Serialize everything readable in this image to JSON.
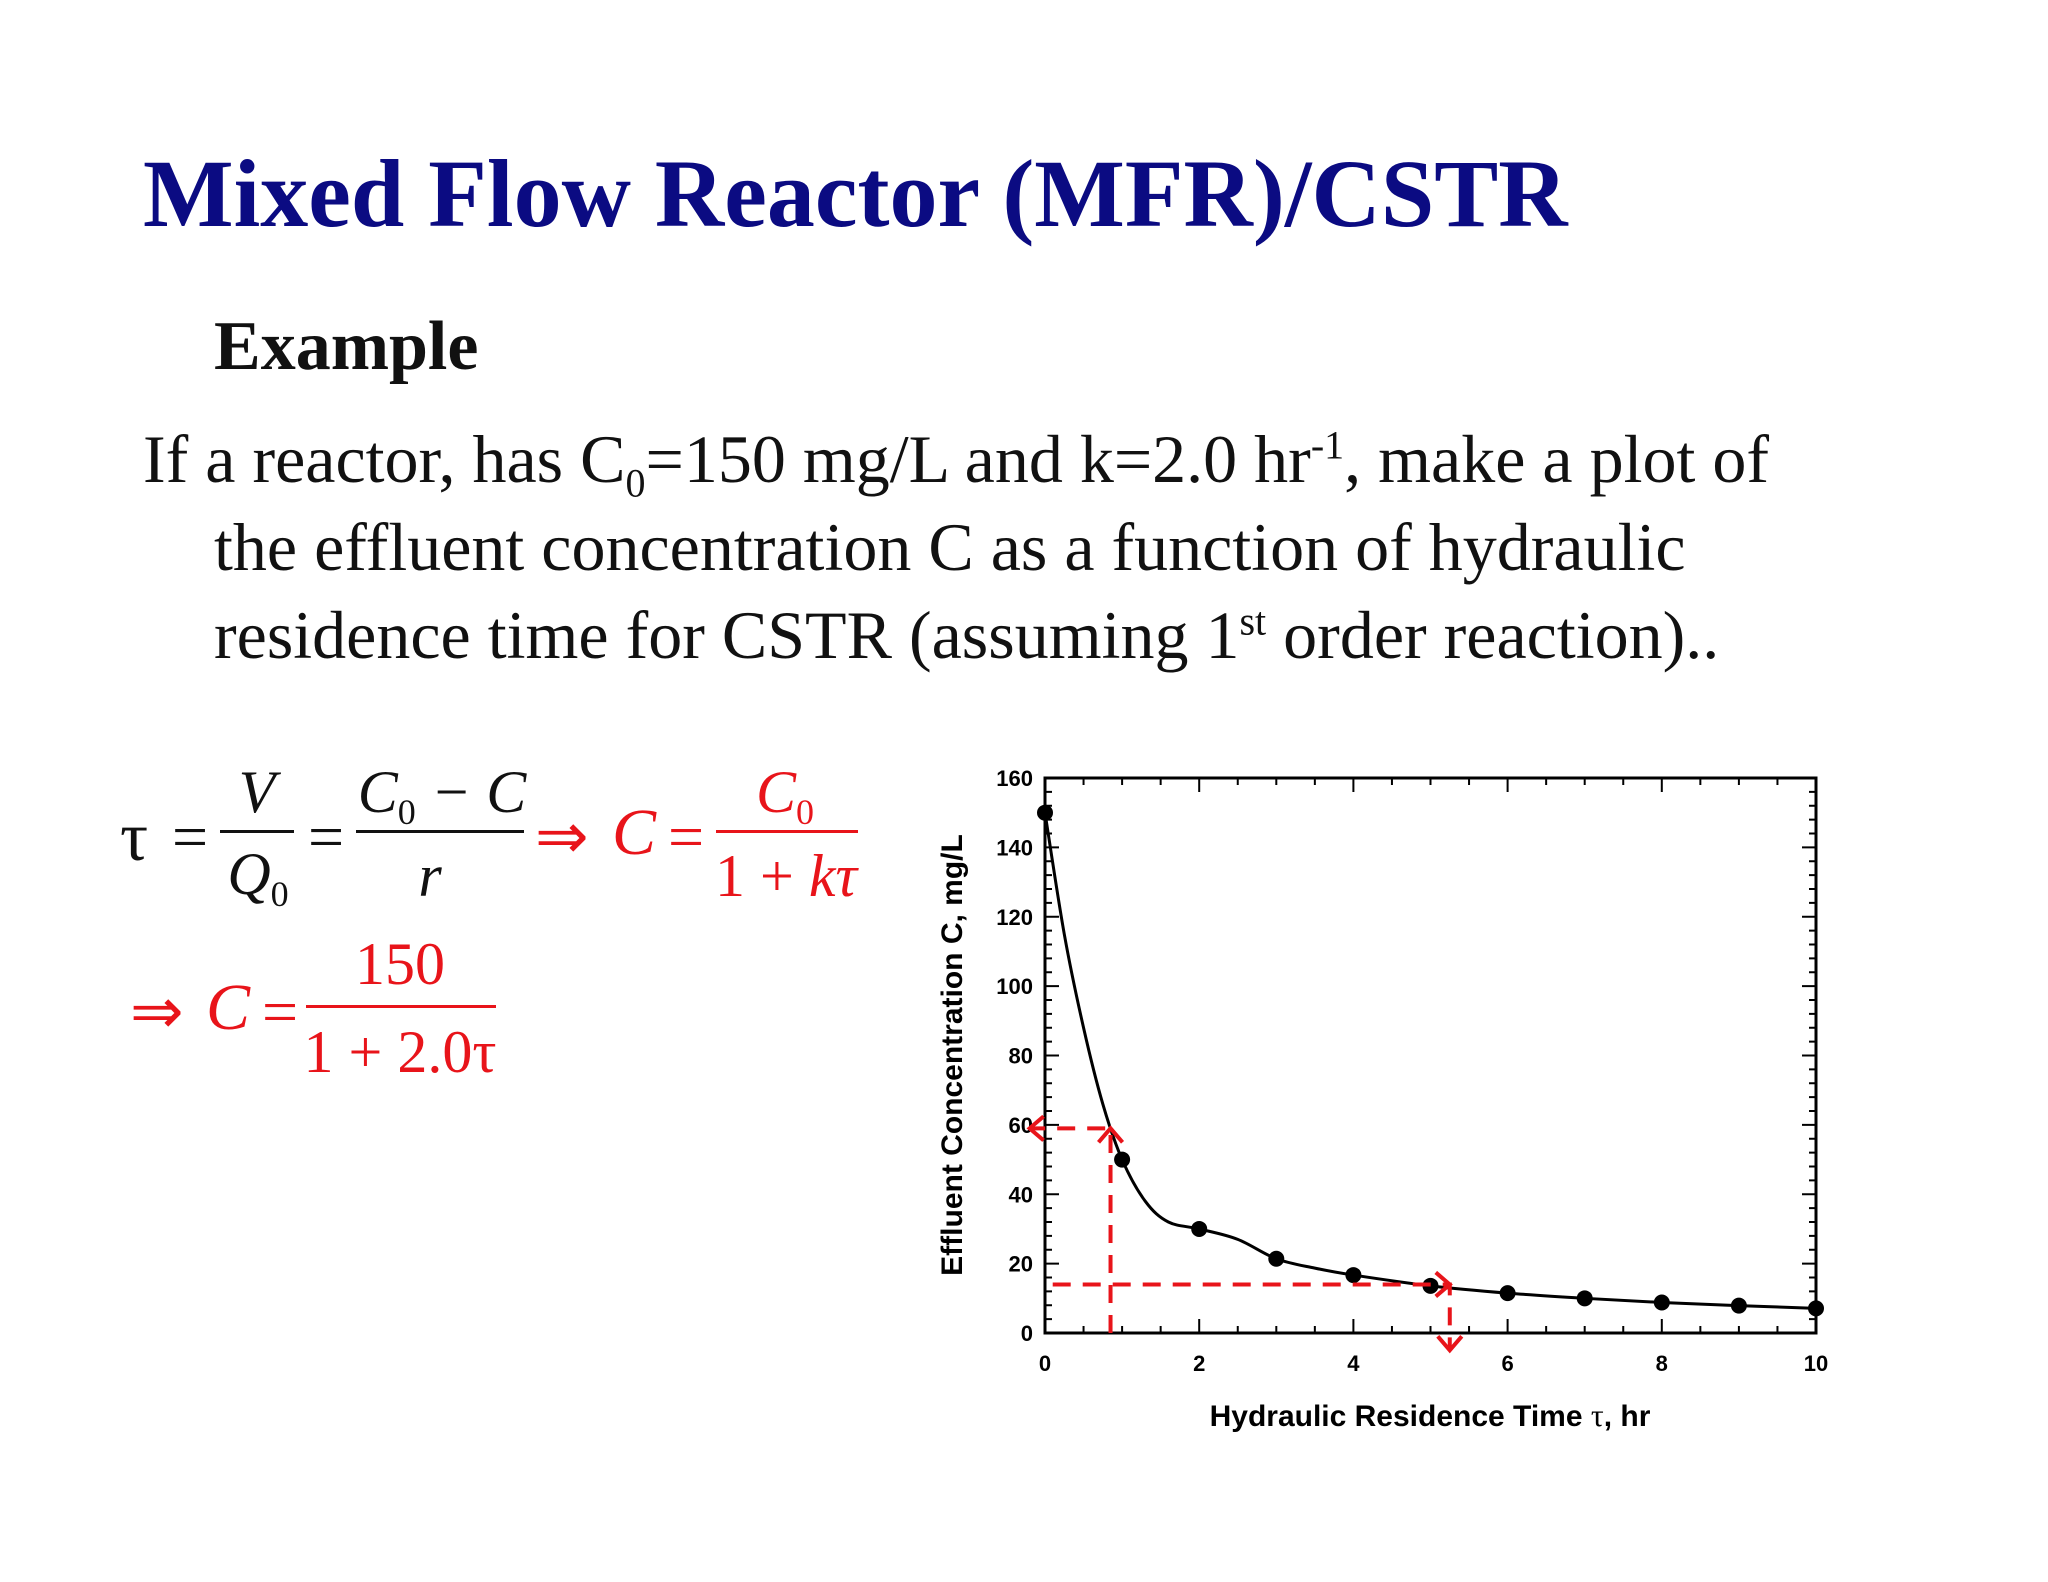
{
  "slide": {
    "title": "Mixed Flow Reactor (MFR)/CSTR",
    "subhead": "Example",
    "para": {
      "l1a": "If a reactor, has C",
      "l1sub": "0",
      "l1b": "=150 mg/L and k=2.0 hr",
      "l1sup": "-1",
      "l1c": ", make a plot of",
      "l2": "the effluent concentration C as a function of hydraulic",
      "l3a": "residence time for CSTR (assuming 1",
      "l3sup": "st",
      "l3b": " order reaction).."
    }
  },
  "equations": {
    "tau": "τ",
    "eq": "=",
    "implies": "⇒",
    "V": "V",
    "Q": "Q",
    "zero": "0",
    "C0minusC_a": "C",
    "C0minusC_b": " − C",
    "r": "r",
    "C": "C",
    "one_plus": "1 + ",
    "ktau": "kτ",
    "num150": "150",
    "den2": "1 + 2.0τ"
  },
  "chart_data": {
    "type": "scatter",
    "xlabel_a": "Hydraulic Residence Time ",
    "xlabel_tau": "τ",
    "xlabel_b": ", hr",
    "ylabel": "Effluent Concentration C, mg/L",
    "xlim": [
      0,
      10
    ],
    "ylim": [
      0,
      160
    ],
    "x_ticks": [
      0,
      2,
      4,
      6,
      8,
      10
    ],
    "y_ticks": [
      0,
      20,
      40,
      60,
      80,
      100,
      120,
      140,
      160
    ],
    "x_tick_labels": [
      "0",
      "2",
      "4",
      "6",
      "8",
      "10"
    ],
    "y_tick_labels": [
      "0",
      "20",
      "40",
      "60",
      "80",
      "100",
      "120",
      "140",
      "160"
    ],
    "points": {
      "x": [
        0,
        1,
        2,
        3,
        4,
        5,
        6,
        7,
        8,
        9,
        10
      ],
      "y": [
        150,
        50,
        30,
        21.4,
        16.7,
        13.6,
        11.5,
        10.0,
        8.8,
        7.9,
        7.1
      ]
    },
    "curve": {
      "x": [
        0,
        0.25,
        0.5,
        0.75,
        1,
        1.3,
        1.6,
        2,
        2.5,
        3,
        3.5,
        4,
        5,
        6,
        7,
        8,
        9,
        10
      ],
      "y": [
        150,
        115,
        88,
        66,
        50,
        38,
        32,
        30,
        27,
        21.4,
        18.7,
        16.7,
        13.6,
        11.5,
        10.0,
        8.8,
        7.9,
        7.1
      ]
    },
    "annotations": [
      {
        "type": "dashed-arrow-path",
        "points": [
          [
            0.85,
            0
          ],
          [
            0.85,
            59
          ],
          [
            -0.2,
            59
          ]
        ],
        "arrowhead": "left"
      },
      {
        "type": "dashed-arrow-path",
        "points": [
          [
            0.1,
            14
          ],
          [
            5.25,
            14
          ],
          [
            5.25,
            -5
          ]
        ],
        "arrowhead": "down"
      }
    ],
    "point_color": "#000000",
    "line_color": "#000000",
    "annotation_color": "#e8141a"
  }
}
